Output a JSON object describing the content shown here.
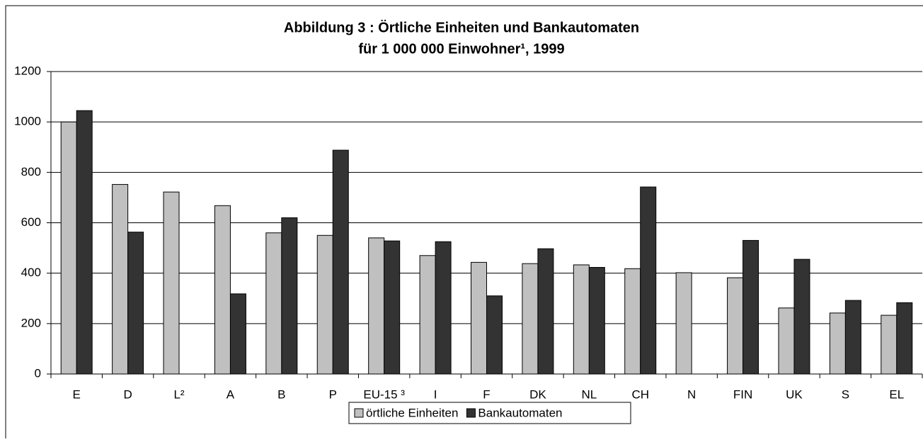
{
  "chart_data": {
    "type": "bar",
    "title": "Abbildung 3 : Örtliche Einheiten und Bankautomaten",
    "subtitle": "für 1 000 000 Einwohner¹, 1999",
    "categories": [
      "E",
      "D",
      "L²",
      "A",
      "B",
      "P",
      "EU-15 ³",
      "I",
      "F",
      "DK",
      "NL",
      "CH",
      "N",
      "FIN",
      "UK",
      "S",
      "EL"
    ],
    "series": [
      {
        "name": "örtliche Einheiten",
        "color": "#c0c0c0",
        "values": [
          1000,
          752,
          722,
          668,
          560,
          550,
          540,
          470,
          443,
          438,
          433,
          418,
          402,
          382,
          262,
          242,
          233
        ]
      },
      {
        "name": "Bankautomaten",
        "color": "#333333",
        "values": [
          1045,
          563,
          null,
          318,
          620,
          888,
          528,
          525,
          310,
          497,
          423,
          742,
          null,
          530,
          455,
          292,
          283
        ]
      }
    ],
    "ylim": [
      0,
      1200
    ],
    "yticks": [
      0,
      200,
      400,
      600,
      800,
      1000,
      1200
    ],
    "grid": true,
    "legend": "bottom"
  }
}
